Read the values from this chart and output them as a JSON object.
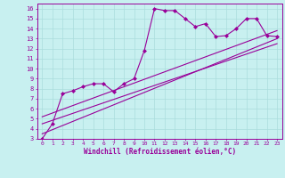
{
  "bg_color": "#c8f0f0",
  "line_color": "#990099",
  "grid_color": "#aadddd",
  "xlabel": "Windchill (Refroidissement éolien,°C)",
  "xlim": [
    -0.5,
    23.5
  ],
  "ylim": [
    3,
    16.5
  ],
  "xticks": [
    0,
    1,
    2,
    3,
    4,
    5,
    6,
    7,
    8,
    9,
    10,
    11,
    12,
    13,
    14,
    15,
    16,
    17,
    18,
    19,
    20,
    21,
    22,
    23
  ],
  "yticks": [
    3,
    4,
    5,
    6,
    7,
    8,
    9,
    10,
    11,
    12,
    13,
    14,
    15,
    16
  ],
  "data_x": [
    0,
    1,
    2,
    3,
    4,
    5,
    6,
    7,
    8,
    9,
    10,
    11,
    12,
    13,
    14,
    15,
    16,
    17,
    18,
    19,
    20,
    21,
    22,
    23
  ],
  "data_y": [
    3.0,
    4.5,
    7.5,
    7.8,
    8.2,
    8.5,
    8.5,
    7.7,
    8.5,
    9.0,
    11.8,
    16.0,
    15.8,
    15.8,
    15.0,
    14.2,
    14.5,
    13.2,
    13.3,
    14.0,
    15.0,
    15.0,
    13.3,
    13.2
  ],
  "line1_x": [
    0,
    23
  ],
  "line1_y": [
    3.5,
    13.0
  ],
  "line2_x": [
    0,
    23
  ],
  "line2_y": [
    4.5,
    12.5
  ],
  "line3_x": [
    0,
    23
  ],
  "line3_y": [
    5.2,
    13.8
  ],
  "marker": "D",
  "marker_size": 2.0,
  "linewidth": 0.8
}
